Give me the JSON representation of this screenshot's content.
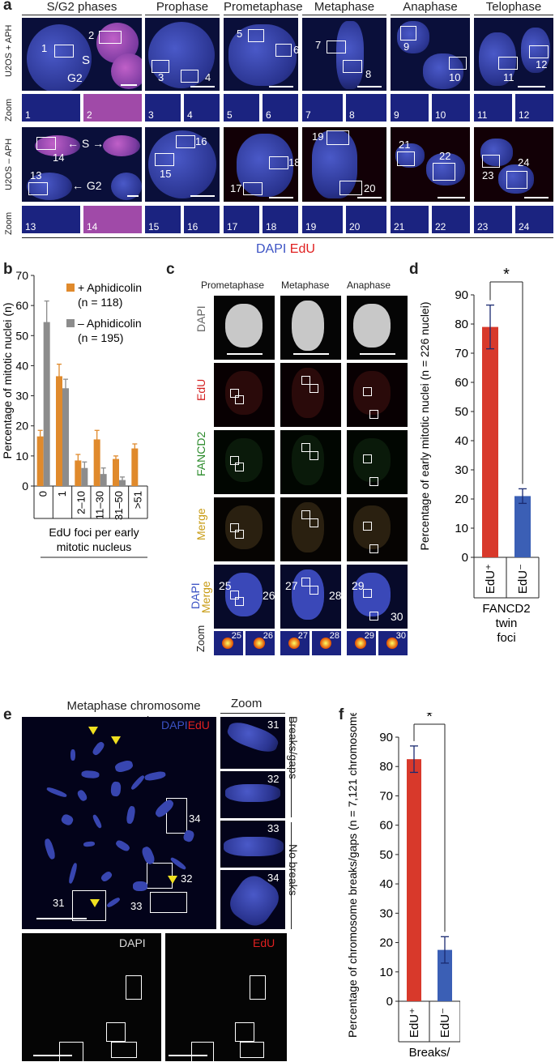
{
  "panel_a": {
    "letter": "a",
    "phases": [
      "S/G2 phases",
      "Prophase",
      "Prometaphase",
      "Metaphase",
      "Anaphase",
      "Telophase"
    ],
    "row_labels": {
      "aph_plus": "U2OS + APH",
      "zoom": "Zoom",
      "aph_minus": "U2OS – APH"
    },
    "cell_labels": {
      "s": "S",
      "g2": "G2",
      "s_arrows": "← S →",
      "g2_arrow": "← G2"
    },
    "zoom_numbers_top": [
      "1",
      "2",
      "3",
      "4",
      "5",
      "6",
      "7",
      "8",
      "9",
      "10",
      "11",
      "12"
    ],
    "zoom_numbers_bottom": [
      "13",
      "14",
      "15",
      "16",
      "17",
      "18",
      "19",
      "20",
      "21",
      "22",
      "23",
      "24"
    ],
    "legend_dapi": "DAPI",
    "legend_edu": "EdU"
  },
  "panel_b": {
    "letter": "b",
    "chart_data": {
      "type": "bar",
      "categories": [
        "0",
        "1",
        "2–10",
        "11–30",
        "31–50",
        ">51"
      ],
      "series": [
        {
          "name": "+ Aphidicolin",
          "n_label": "(n = 118)",
          "color": "#e08a2c",
          "values": [
            16.5,
            36.5,
            8.5,
            15.5,
            9,
            12.5
          ],
          "errors": [
            2,
            4,
            2,
            3,
            1,
            1.5
          ]
        },
        {
          "name": "– Aphidicolin",
          "n_label": "(n = 195)",
          "color": "#8c8c8c",
          "values": [
            54.5,
            32.5,
            6,
            4,
            2,
            0
          ],
          "errors": [
            7,
            3,
            2,
            2,
            1,
            0
          ]
        }
      ],
      "ylabel": "Percentage of mitotic nuclei (n)",
      "xlabel": "EdU foci per early mitotic nucleus",
      "ylim": [
        0,
        70
      ],
      "yticks": [
        0,
        10,
        20,
        30,
        40,
        50,
        60,
        70
      ]
    }
  },
  "panel_c": {
    "letter": "c",
    "columns": [
      "Prometaphase",
      "Metaphase",
      "Anaphase"
    ],
    "rows": [
      "DAPI",
      "EdU",
      "FANCD2",
      "Merge",
      "DAPI Merge"
    ],
    "row5_dapi": "DAPI",
    "row5_merge": "Merge",
    "zoom_label": "Zoom",
    "numbers": [
      "25",
      "26",
      "27",
      "28",
      "29",
      "30"
    ]
  },
  "panel_d": {
    "letter": "d",
    "chart_data": {
      "type": "bar",
      "categories": [
        "EdU⁺",
        "EdU⁻"
      ],
      "values": [
        79,
        21
      ],
      "errors": [
        7.5,
        2.5
      ],
      "colors": [
        "#d8392b",
        "#3b5fb5"
      ],
      "ylabel": "Percentage of early mitotic nuclei (n = 226 nuclei)",
      "ylim": [
        0,
        90
      ],
      "yticks": [
        0,
        10,
        20,
        30,
        40,
        50,
        60,
        70,
        80,
        90
      ],
      "group_label": "FANCD2 twin foci",
      "significance": "*"
    }
  },
  "panel_e": {
    "letter": "e",
    "title": "Metaphase chromosome spreads",
    "zoom_title": "Zoom",
    "channel_dapi": "DAPI",
    "channel_edu": "EdU",
    "numbers": [
      "31",
      "32",
      "33",
      "34"
    ],
    "breaks_label": "Breaks/gaps",
    "nobreaks_label": "No breaks"
  },
  "panel_f": {
    "letter": "f",
    "chart_data": {
      "type": "bar",
      "categories": [
        "EdU⁺",
        "EdU⁻"
      ],
      "values": [
        82.5,
        17.5
      ],
      "errors": [
        4.5,
        4.5
      ],
      "colors": [
        "#d8392b",
        "#3b5fb5"
      ],
      "ylabel": "Percentage of chromosome breaks/gaps (n = 7,121 chromosomes)",
      "ylim": [
        0,
        90
      ],
      "yticks": [
        0,
        10,
        20,
        30,
        40,
        50,
        60,
        70,
        80,
        90
      ],
      "group_label": "Breaks/ gaps",
      "significance": "*"
    }
  }
}
